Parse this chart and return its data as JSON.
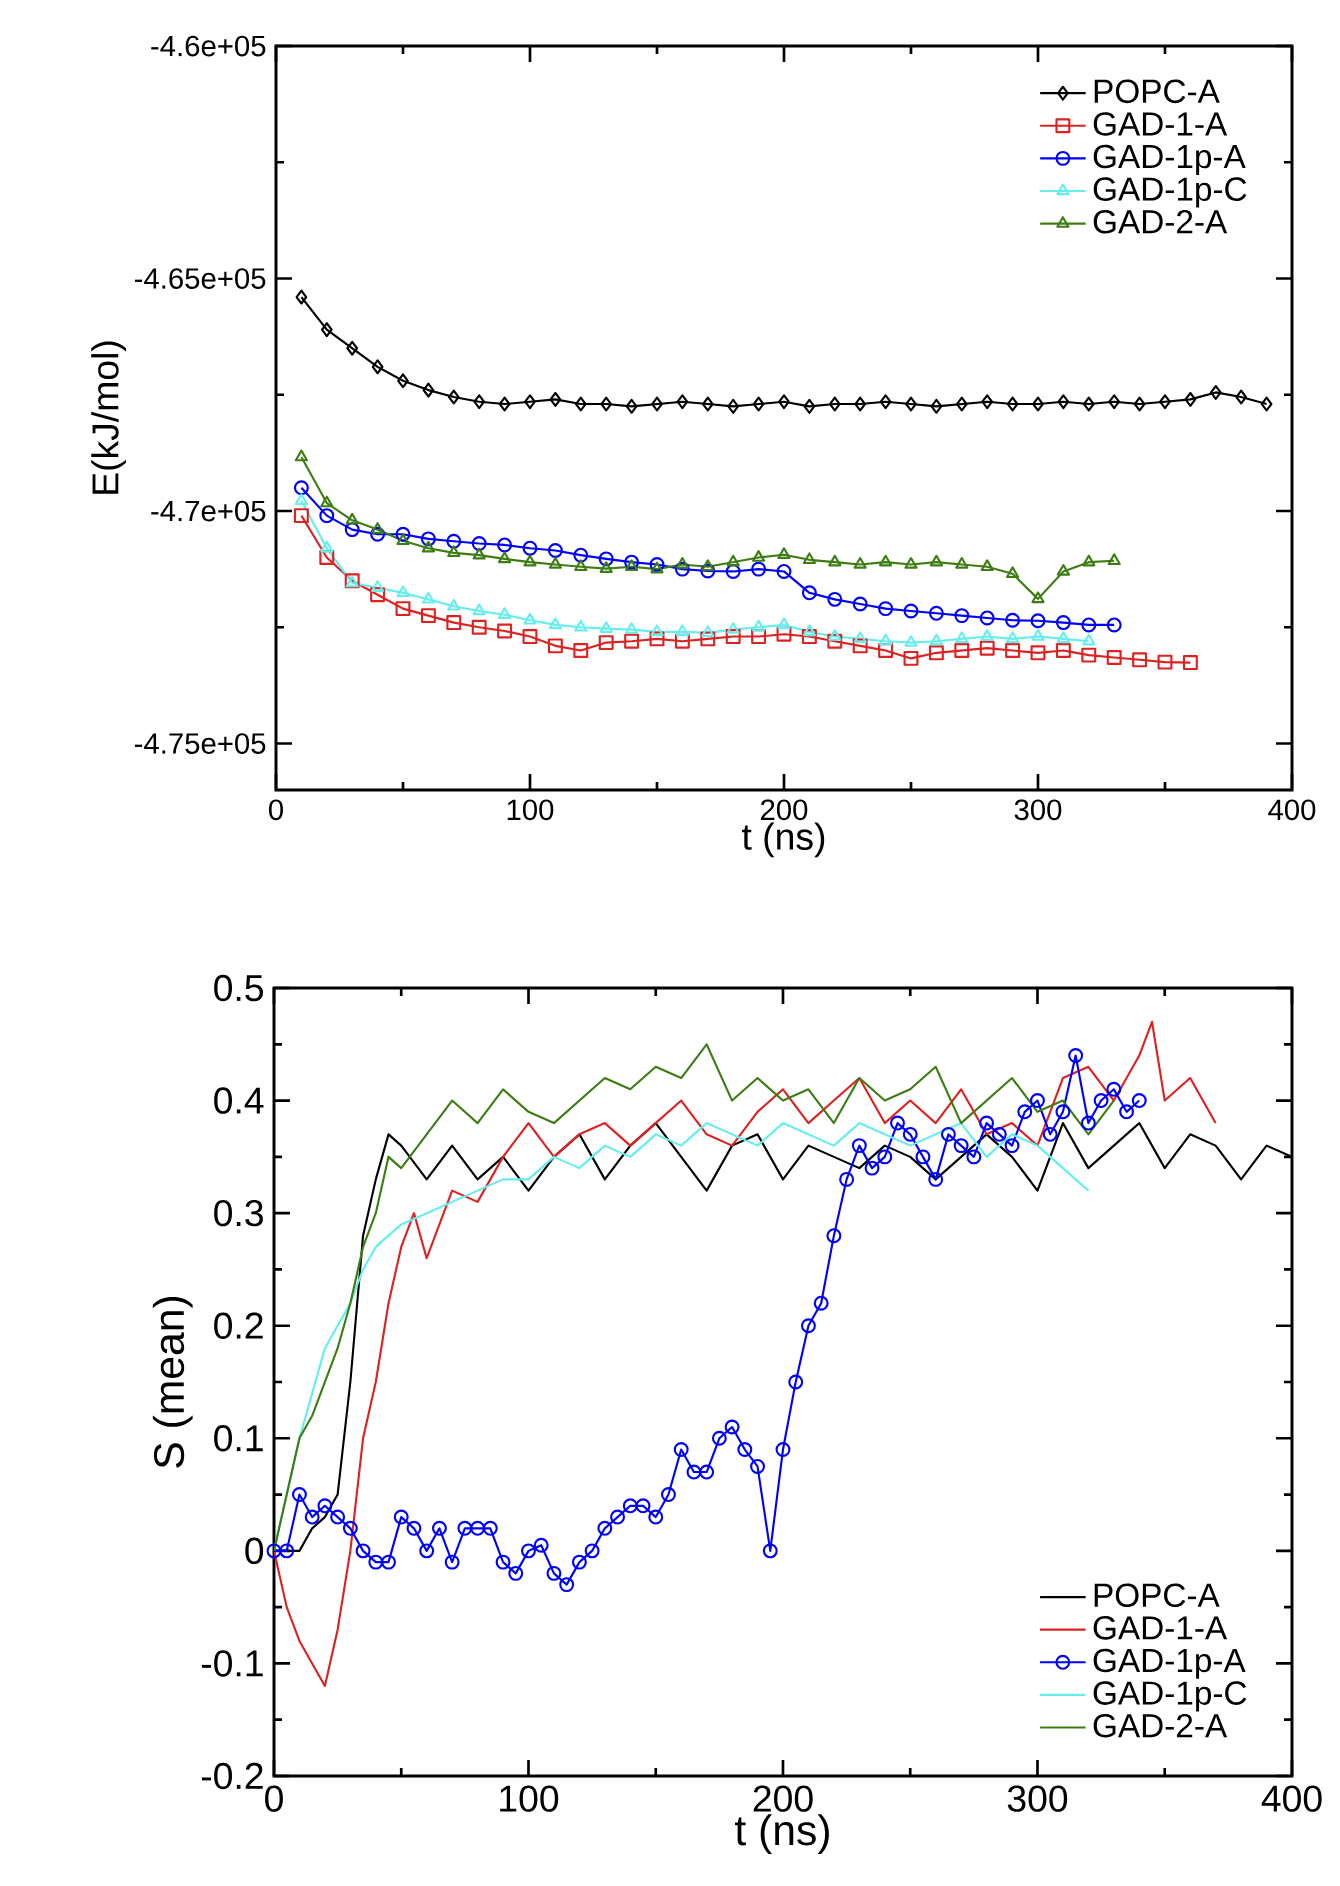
{
  "chart_data": [
    {
      "type": "line",
      "xlabel": "t (ns)",
      "ylabel": "E(kJ/mol)",
      "xlim": [
        0,
        400
      ],
      "ylim": [
        -476000,
        -460000
      ],
      "xticks": [
        0,
        100,
        200,
        300,
        400
      ],
      "yticks": [
        {
          "value": -475000,
          "label": "-4.75e+05"
        },
        {
          "value": -470000,
          "label": "-4.7e+05"
        },
        {
          "value": -465000,
          "label": "-4.65e+05"
        },
        {
          "value": -460000,
          "label": "-4.6e+05"
        }
      ],
      "legend": "top right",
      "line_style": "solid",
      "series": [
        {
          "name": "POPC-A",
          "color": "#000000",
          "marker": "diamond",
          "x": [
            10,
            20,
            30,
            40,
            50,
            60,
            70,
            80,
            90,
            100,
            110,
            120,
            130,
            140,
            150,
            160,
            170,
            180,
            190,
            200,
            210,
            220,
            230,
            240,
            250,
            260,
            270,
            280,
            290,
            300,
            310,
            320,
            330,
            340,
            350,
            360,
            370,
            380,
            390
          ],
          "values": [
            -465400,
            -466100,
            -466500,
            -466900,
            -467200,
            -467400,
            -467550,
            -467650,
            -467700,
            -467650,
            -467600,
            -467700,
            -467700,
            -467750,
            -467700,
            -467650,
            -467700,
            -467750,
            -467700,
            -467650,
            -467750,
            -467700,
            -467700,
            -467650,
            -467700,
            -467750,
            -467700,
            -467650,
            -467700,
            -467700,
            -467650,
            -467700,
            -467650,
            -467700,
            -467650,
            -467600,
            -467450,
            -467550,
            -467700
          ]
        },
        {
          "name": "GAD-1-A",
          "color": "#dd2222",
          "marker": "square",
          "x": [
            10,
            20,
            30,
            40,
            50,
            60,
            70,
            80,
            90,
            100,
            110,
            120,
            130,
            140,
            150,
            160,
            170,
            180,
            190,
            200,
            210,
            220,
            230,
            240,
            250,
            260,
            270,
            280,
            290,
            300,
            310,
            320,
            330,
            340,
            350,
            360
          ],
          "values": [
            -470100,
            -471000,
            -471500,
            -471800,
            -472100,
            -472250,
            -472400,
            -472500,
            -472580,
            -472700,
            -472900,
            -473000,
            -472830,
            -472800,
            -472750,
            -472800,
            -472750,
            -472700,
            -472700,
            -472650,
            -472700,
            -472800,
            -472900,
            -473000,
            -473170,
            -473050,
            -473000,
            -472950,
            -473000,
            -473050,
            -473000,
            -473100,
            -473150,
            -473200,
            -473250,
            -473260
          ]
        },
        {
          "name": "GAD-1p-A",
          "color": "#0000ff",
          "marker": "circle",
          "x": [
            10,
            20,
            30,
            40,
            50,
            60,
            70,
            80,
            90,
            100,
            110,
            120,
            130,
            140,
            150,
            160,
            170,
            180,
            190,
            200,
            210,
            220,
            230,
            240,
            250,
            260,
            270,
            280,
            290,
            300,
            310,
            320,
            330
          ],
          "values": [
            -469500,
            -470100,
            -470400,
            -470500,
            -470500,
            -470600,
            -470650,
            -470700,
            -470730,
            -470800,
            -470850,
            -470950,
            -471030,
            -471100,
            -471150,
            -471250,
            -471290,
            -471300,
            -471250,
            -471300,
            -471760,
            -471900,
            -472000,
            -472100,
            -472150,
            -472200,
            -472250,
            -472300,
            -472350,
            -472360,
            -472400,
            -472450,
            -472450
          ]
        },
        {
          "name": "GAD-1p-C",
          "color": "#66eeee",
          "marker": "triangle",
          "x": [
            10,
            20,
            30,
            40,
            50,
            60,
            70,
            80,
            90,
            100,
            110,
            120,
            130,
            140,
            150,
            160,
            170,
            180,
            190,
            200,
            210,
            220,
            230,
            240,
            250,
            260,
            270,
            280,
            290,
            300,
            310,
            320
          ],
          "values": [
            -469780,
            -470800,
            -471550,
            -471650,
            -471760,
            -471900,
            -472050,
            -472150,
            -472230,
            -472350,
            -472450,
            -472500,
            -472530,
            -472550,
            -472600,
            -472600,
            -472620,
            -472550,
            -472500,
            -472450,
            -472600,
            -472700,
            -472750,
            -472800,
            -472830,
            -472800,
            -472750,
            -472700,
            -472750,
            -472700,
            -472750,
            -472800
          ]
        },
        {
          "name": "GAD-2-A",
          "color": "#3d7d13",
          "marker": "triangle",
          "x": [
            10,
            20,
            30,
            40,
            50,
            60,
            70,
            80,
            90,
            100,
            110,
            120,
            130,
            140,
            150,
            160,
            170,
            180,
            190,
            200,
            210,
            220,
            230,
            240,
            250,
            260,
            270,
            280,
            290,
            300,
            310,
            320,
            330
          ],
          "values": [
            -468840,
            -469830,
            -470200,
            -470400,
            -470640,
            -470800,
            -470900,
            -470950,
            -471030,
            -471100,
            -471150,
            -471200,
            -471240,
            -471200,
            -471250,
            -471150,
            -471200,
            -471100,
            -471000,
            -470940,
            -471050,
            -471100,
            -471150,
            -471100,
            -471150,
            -471100,
            -471150,
            -471200,
            -471350,
            -471890,
            -471300,
            -471100,
            -471070
          ]
        }
      ]
    },
    {
      "type": "line",
      "xlabel": "t (ns)",
      "ylabel": "S (mean)",
      "xlim": [
        0,
        400
      ],
      "ylim": [
        -0.2,
        0.5
      ],
      "xticks": [
        0,
        100,
        200,
        300,
        400
      ],
      "yticks": [
        -0.2,
        -0.1,
        0,
        0.1,
        0.2,
        0.3,
        0.4,
        0.5
      ],
      "legend": "bottom right",
      "line_style": "solid",
      "series": [
        {
          "name": "POPC-A",
          "color": "#000000",
          "marker": "none",
          "x": [
            0,
            5,
            10,
            15,
            20,
            25,
            30,
            35,
            40,
            45,
            50,
            60,
            70,
            80,
            90,
            100,
            110,
            120,
            130,
            140,
            150,
            160,
            170,
            180,
            190,
            200,
            210,
            220,
            230,
            240,
            250,
            260,
            270,
            280,
            290,
            300,
            310,
            320,
            330,
            340,
            350,
            360,
            370,
            380,
            390,
            400
          ],
          "values": [
            0,
            0,
            0,
            0.02,
            0.03,
            0.05,
            0.15,
            0.28,
            0.33,
            0.37,
            0.36,
            0.33,
            0.36,
            0.33,
            0.35,
            0.32,
            0.35,
            0.37,
            0.33,
            0.36,
            0.38,
            0.35,
            0.32,
            0.36,
            0.37,
            0.33,
            0.36,
            0.35,
            0.34,
            0.36,
            0.35,
            0.33,
            0.35,
            0.37,
            0.35,
            0.32,
            0.38,
            0.34,
            0.36,
            0.38,
            0.34,
            0.37,
            0.36,
            0.33,
            0.36,
            0.35
          ]
        },
        {
          "name": "GAD-1-A",
          "color": "#dd2222",
          "marker": "none",
          "x": [
            0,
            5,
            10,
            15,
            20,
            25,
            30,
            35,
            40,
            45,
            50,
            55,
            60,
            70,
            80,
            90,
            100,
            110,
            120,
            130,
            140,
            150,
            160,
            170,
            180,
            190,
            200,
            210,
            220,
            230,
            240,
            250,
            260,
            270,
            280,
            290,
            300,
            310,
            320,
            330,
            340,
            345,
            350,
            360,
            370
          ],
          "values": [
            0,
            -0.05,
            -0.08,
            -0.1,
            -0.12,
            -0.07,
            0,
            0.1,
            0.15,
            0.22,
            0.27,
            0.3,
            0.26,
            0.32,
            0.31,
            0.35,
            0.38,
            0.35,
            0.37,
            0.38,
            0.36,
            0.38,
            0.4,
            0.37,
            0.36,
            0.39,
            0.41,
            0.38,
            0.4,
            0.42,
            0.38,
            0.4,
            0.38,
            0.41,
            0.37,
            0.38,
            0.36,
            0.42,
            0.43,
            0.4,
            0.44,
            0.47,
            0.4,
            0.42,
            0.38
          ]
        },
        {
          "name": "GAD-1p-A",
          "color": "#0000ff",
          "marker": "circle",
          "x": [
            0,
            5,
            10,
            15,
            20,
            25,
            30,
            35,
            40,
            45,
            50,
            55,
            60,
            65,
            70,
            75,
            80,
            85,
            90,
            95,
            100,
            105,
            110,
            115,
            120,
            125,
            130,
            135,
            140,
            145,
            150,
            155,
            160,
            165,
            170,
            175,
            180,
            185,
            190,
            195,
            200,
            205,
            210,
            215,
            220,
            225,
            230,
            235,
            240,
            245,
            250,
            255,
            260,
            265,
            270,
            275,
            280,
            285,
            290,
            295,
            300,
            305,
            310,
            315,
            320,
            325,
            330,
            335,
            340
          ],
          "values": [
            0,
            0,
            0.05,
            0.03,
            0.04,
            0.03,
            0.02,
            0,
            -0.01,
            -0.01,
            0.03,
            0.02,
            0,
            0.02,
            -0.01,
            0.02,
            0.02,
            0.02,
            -0.01,
            -0.02,
            0,
            0.005,
            -0.02,
            -0.03,
            -0.01,
            0,
            0.02,
            0.03,
            0.04,
            0.04,
            0.03,
            0.05,
            0.09,
            0.07,
            0.07,
            0.1,
            0.11,
            0.09,
            0.075,
            0,
            0.09,
            0.15,
            0.2,
            0.22,
            0.28,
            0.33,
            0.36,
            0.34,
            0.35,
            0.38,
            0.37,
            0.35,
            0.33,
            0.37,
            0.36,
            0.35,
            0.38,
            0.37,
            0.36,
            0.39,
            0.4,
            0.37,
            0.39,
            0.44,
            0.38,
            0.4,
            0.41,
            0.39,
            0.4
          ]
        },
        {
          "name": "GAD-1p-C",
          "color": "#66eeee",
          "marker": "none",
          "x": [
            0,
            5,
            10,
            15,
            20,
            25,
            30,
            35,
            40,
            50,
            60,
            70,
            80,
            90,
            100,
            110,
            120,
            130,
            140,
            150,
            160,
            170,
            180,
            190,
            200,
            210,
            220,
            230,
            240,
            250,
            260,
            270,
            280,
            290,
            300,
            310,
            320
          ],
          "values": [
            0,
            0.05,
            0.1,
            0.14,
            0.18,
            0.2,
            0.22,
            0.25,
            0.27,
            0.29,
            0.3,
            0.31,
            0.32,
            0.33,
            0.33,
            0.35,
            0.34,
            0.36,
            0.35,
            0.37,
            0.36,
            0.38,
            0.37,
            0.36,
            0.38,
            0.37,
            0.36,
            0.38,
            0.37,
            0.36,
            0.37,
            0.38,
            0.35,
            0.37,
            0.36,
            0.34,
            0.32
          ]
        },
        {
          "name": "GAD-2-A",
          "color": "#3d7d13",
          "marker": "none",
          "x": [
            0,
            5,
            10,
            15,
            20,
            25,
            30,
            35,
            40,
            45,
            50,
            60,
            70,
            80,
            90,
            100,
            110,
            120,
            130,
            140,
            150,
            160,
            170,
            180,
            190,
            200,
            210,
            220,
            230,
            240,
            250,
            260,
            270,
            280,
            290,
            300,
            310,
            320,
            330
          ],
          "values": [
            0,
            0.05,
            0.1,
            0.12,
            0.15,
            0.18,
            0.22,
            0.27,
            0.3,
            0.35,
            0.34,
            0.37,
            0.4,
            0.38,
            0.41,
            0.39,
            0.38,
            0.4,
            0.42,
            0.41,
            0.43,
            0.42,
            0.45,
            0.4,
            0.42,
            0.4,
            0.41,
            0.38,
            0.42,
            0.4,
            0.41,
            0.43,
            0.38,
            0.4,
            0.42,
            0.39,
            0.4,
            0.37,
            0.4
          ]
        }
      ]
    }
  ]
}
